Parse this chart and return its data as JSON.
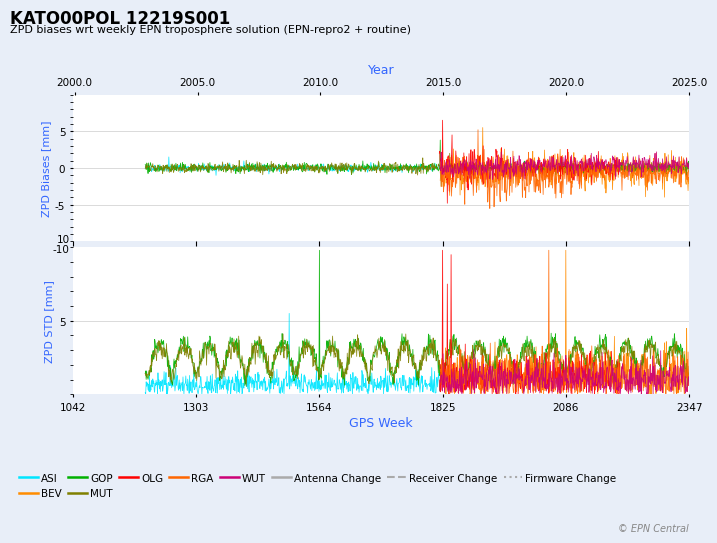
{
  "title": "KATO00POL 12219S001",
  "subtitle": "ZPD biases wrt weekly EPN troposphere solution (EPN-repro2 + routine)",
  "xlabel_bottom": "GPS Week",
  "xlabel_top": "Year",
  "ylabel_top": "ZPD Biases [mm]",
  "ylabel_bottom": "ZPD STD [mm]",
  "copyright": "© EPN Central",
  "gps_week_range": [
    1042,
    2347
  ],
  "year_ticks": [
    2000.0,
    2005.0,
    2010.0,
    2015.0,
    2020.0,
    2025.0
  ],
  "gps_week_ticks": [
    1042,
    1303,
    1564,
    1825,
    2086,
    2347
  ],
  "bias_ylim": [
    -10,
    10
  ],
  "std_ylim": [
    0,
    10
  ],
  "bias_yticks": [
    -5,
    0,
    5
  ],
  "std_yticks": [
    5
  ],
  "colors": {
    "ASI": "#00e5ff",
    "BEV": "#ff8c00",
    "GOP": "#00b000",
    "MUT": "#808000",
    "OLG": "#ff0000",
    "RGA": "#ff6600",
    "WUT": "#cc0077"
  },
  "background_color": "#e8eef8",
  "plot_bg_color": "#ffffff",
  "grid_color": "#cccccc",
  "axis_label_color": "#3366ff",
  "title_color": "#000000",
  "subtitle_color": "#000000",
  "antenna_change_color": "#aaaaaa",
  "receiver_change_color": "#aaaaaa",
  "firmware_change_color": "#aaaaaa"
}
